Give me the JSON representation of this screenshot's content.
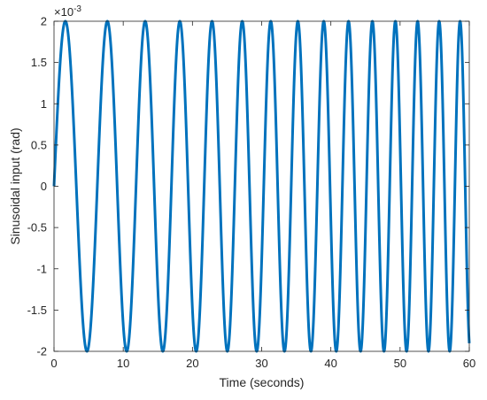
{
  "chart_data": {
    "type": "line",
    "title": "",
    "xlabel": "Time (seconds)",
    "ylabel": "Sinusoidal input (rad)",
    "exponent_label": "×10",
    "exponent_power": "-3",
    "xlim": [
      0,
      60
    ],
    "ylim": [
      -2,
      2
    ],
    "xticks": [
      0,
      10,
      20,
      30,
      40,
      50,
      60
    ],
    "xtick_labels": [
      "0",
      "10",
      "20",
      "30",
      "40",
      "50",
      "60"
    ],
    "yticks": [
      -2,
      -1.5,
      -1,
      -0.5,
      0,
      0.5,
      1,
      1.5,
      2
    ],
    "ytick_labels": [
      "-2",
      "-1.5",
      "-1",
      "-0.5",
      "0",
      "0.5",
      "1",
      "1.5",
      "2"
    ],
    "grid": false,
    "series": [
      {
        "amplitude": 2,
        "function": "amplitude * sin(2*pi*f(t)*t)",
        "start_frequency_hz": 0.15,
        "end_frequency_hz": 0.34,
        "duration_s": 60,
        "color": "#0072BD",
        "line_width": 3
      }
    ]
  }
}
